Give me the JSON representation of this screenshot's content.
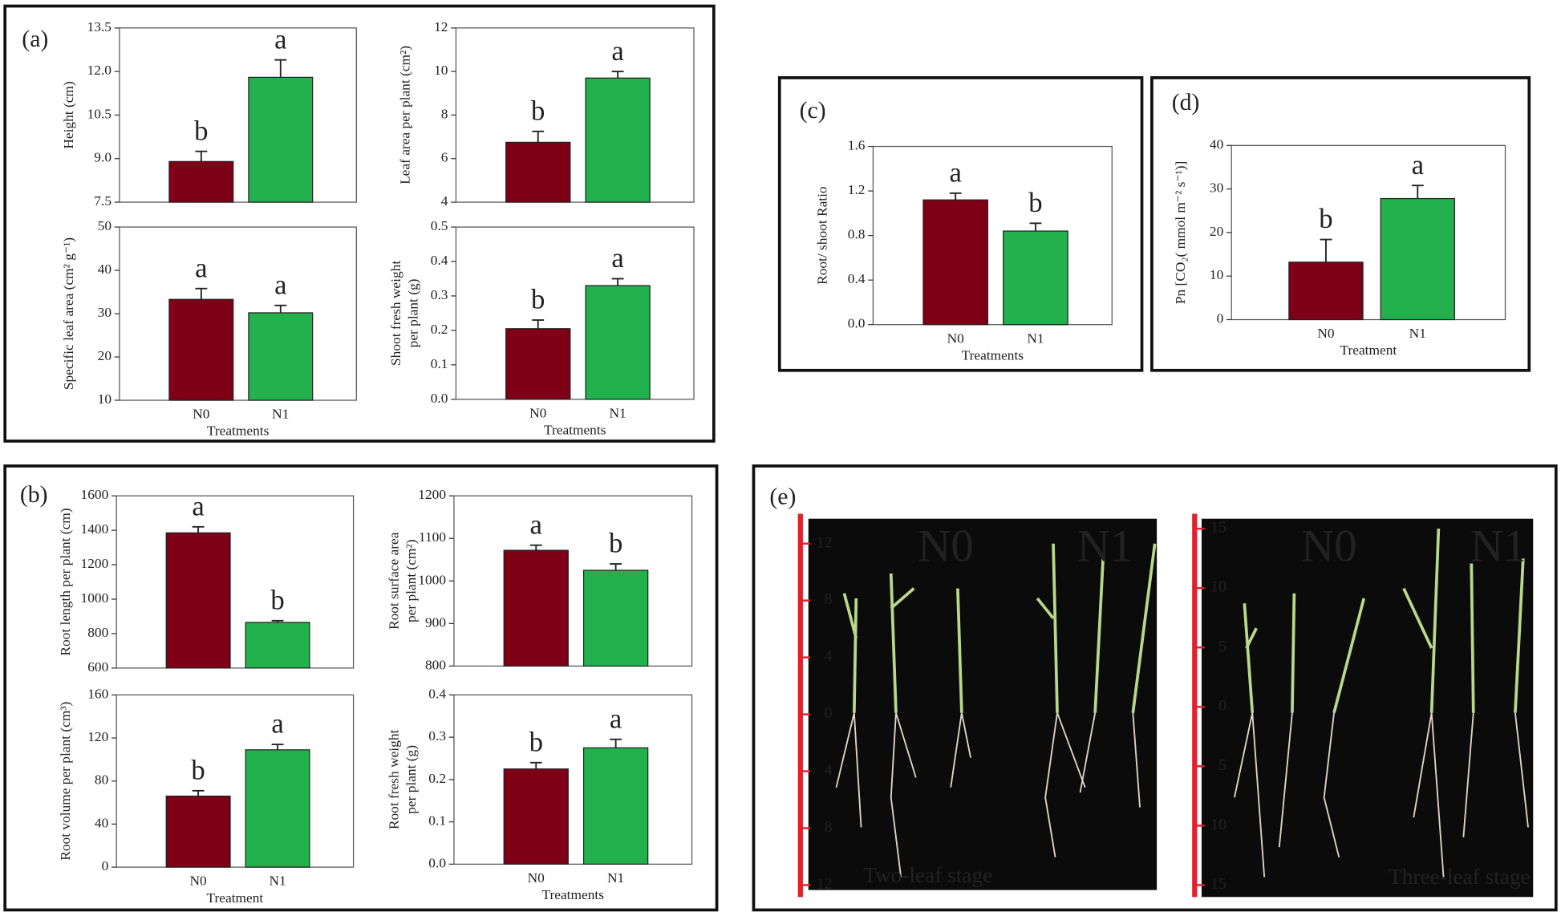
{
  "panel_labels": [
    "(a)",
    "(b)",
    "(c)",
    "(d)",
    "(e)"
  ],
  "chart_data": [
    {
      "type": "bar",
      "ylabel": [
        "Height (cm)"
      ],
      "categories": [
        null,
        null
      ],
      "values": [
        8.9,
        11.8
      ],
      "errors": [
        0.35,
        0.6
      ],
      "annotations": [
        "b",
        "a"
      ],
      "colors": [
        "#7f0016",
        "#22b14c"
      ],
      "ylim": [
        7.5,
        13.5
      ],
      "yticks": [
        7.5,
        {
          "value": 9,
          "label": "9.0"
        },
        10.5,
        {
          "value": 12,
          "label": "12.0"
        },
        13.5
      ]
    },
    {
      "type": "bar",
      "ylabel": [
        "Leaf area per plant (cm²)"
      ],
      "categories": [
        null,
        null
      ],
      "values": [
        6.75,
        9.7
      ],
      "errors": [
        0.5,
        0.3
      ],
      "annotations": [
        "b",
        "a"
      ],
      "colors": [
        "#7f0016",
        "#22b14c"
      ],
      "ylim": [
        4,
        12
      ],
      "yticks": [
        4,
        6,
        8,
        10,
        12
      ]
    },
    {
      "type": "bar",
      "ylabel": [
        "Specific leaf area (cm² g⁻¹)"
      ],
      "xlabel": "Treatments",
      "categories": [
        "N0",
        "N1"
      ],
      "values": [
        33.3,
        30.2
      ],
      "errors": [
        2.5,
        1.7
      ],
      "annotations": [
        "a",
        "a"
      ],
      "colors": [
        "#7f0016",
        "#22b14c"
      ],
      "ylim": [
        10,
        50
      ],
      "yticks": [
        10,
        20,
        30,
        40,
        50
      ]
    },
    {
      "type": "bar",
      "ylabel": [
        "Shoot fresh weight",
        "per plant (g)"
      ],
      "xlabel": "Treatments",
      "categories": [
        "N0",
        "N1"
      ],
      "values": [
        0.205,
        0.33
      ],
      "errors": [
        0.025,
        0.02
      ],
      "annotations": [
        "b",
        "a"
      ],
      "colors": [
        "#7f0016",
        "#22b14c"
      ],
      "ylim": [
        0,
        0.5
      ],
      "yticks": [
        {
          "value": 0,
          "label": "0.0"
        },
        0.1,
        0.2,
        0.3,
        0.4,
        0.5
      ]
    },
    {
      "type": "bar",
      "ylabel": [
        "Root/ shoot Ratio"
      ],
      "xlabel": "Treatments",
      "categories": [
        "N0",
        "N1"
      ],
      "values": [
        1.12,
        0.84
      ],
      "errors": [
        0.06,
        0.07
      ],
      "annotations": [
        "a",
        "b"
      ],
      "colors": [
        "#7f0016",
        "#22b14c"
      ],
      "ylim": [
        0,
        1.6
      ],
      "yticks": [
        {
          "value": 0,
          "label": "0.0"
        },
        0.4,
        0.8,
        1.2,
        1.6
      ]
    },
    {
      "type": "bar",
      "ylabel": [
        "Pn [CO₂( mmol m⁻² s⁻¹)]"
      ],
      "xlabel": "Treatment",
      "categories": [
        "N0",
        "N1"
      ],
      "values": [
        13.2,
        27.8
      ],
      "errors": [
        5.2,
        3
      ],
      "annotations": [
        "b",
        "a"
      ],
      "colors": [
        "#7f0016",
        "#22b14c"
      ],
      "ylim": [
        0,
        40
      ],
      "yticks": [
        0,
        10,
        20,
        30,
        40
      ]
    },
    {
      "type": "bar",
      "ylabel": [
        "Root length per plant (cm)"
      ],
      "categories": [
        null,
        null
      ],
      "values": [
        1385,
        865
      ],
      "errors": [
        35,
        10
      ],
      "annotations": [
        "a",
        "b"
      ],
      "colors": [
        "#7f0016",
        "#22b14c"
      ],
      "ylim": [
        600,
        1600
      ],
      "yticks": [
        600,
        800,
        1000,
        1200,
        1400,
        1600
      ]
    },
    {
      "type": "bar",
      "ylabel": [
        "Root surface area",
        "per plant (cm²)"
      ],
      "categories": [
        null,
        null
      ],
      "values": [
        1072,
        1025
      ],
      "errors": [
        12,
        15
      ],
      "annotations": [
        "a",
        "b"
      ],
      "colors": [
        "#7f0016",
        "#22b14c"
      ],
      "ylim": [
        800,
        1200
      ],
      "yticks": [
        800,
        900,
        1000,
        1100,
        1200
      ]
    },
    {
      "type": "bar",
      "ylabel": [
        "Root volume per plant (cm³)"
      ],
      "xlabel": "Treatment",
      "categories": [
        "N0",
        "N1"
      ],
      "values": [
        66,
        109
      ],
      "errors": [
        5,
        5
      ],
      "annotations": [
        "b",
        "a"
      ],
      "colors": [
        "#7f0016",
        "#22b14c"
      ],
      "ylim": [
        0,
        160
      ],
      "yticks": [
        0,
        40,
        80,
        120,
        160
      ]
    },
    {
      "type": "bar",
      "ylabel": [
        "Root fresh weight",
        "per plant (g)"
      ],
      "xlabel": "Treatments",
      "categories": [
        "N0",
        "N1"
      ],
      "values": [
        0.225,
        0.275
      ],
      "errors": [
        0.015,
        0.02
      ],
      "annotations": [
        "b",
        "a"
      ],
      "colors": [
        "#7f0016",
        "#22b14c"
      ],
      "ylim": [
        0,
        0.4
      ],
      "yticks": [
        {
          "value": 0,
          "label": "0.0"
        },
        0.1,
        0.2,
        0.3,
        0.4
      ]
    }
  ],
  "photo": {
    "left_scale": [
      "12",
      "8",
      "4",
      "0",
      "4",
      "8",
      "12"
    ],
    "right_scale": [
      "15",
      "10",
      "5",
      "0",
      "5",
      "10",
      "15"
    ],
    "left_labels": [
      "N0",
      "N1"
    ],
    "right_labels": [
      "N0",
      "N1"
    ],
    "left_stage": "Two-leaf stage",
    "right_stage": "Three-leaf stage"
  }
}
